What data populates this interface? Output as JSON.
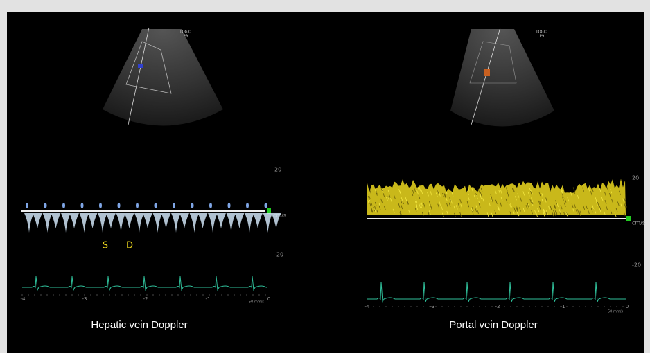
{
  "panels": [
    {
      "caption": "Hepatic vein Doppler",
      "logo": [
        "LOGIQ",
        "P9"
      ],
      "scale": [
        "20",
        "cm/s",
        "-20"
      ],
      "time": [
        "-4",
        "-3",
        "-2",
        "-1",
        "0"
      ],
      "speed": "50 mm/s",
      "markers": [
        "S",
        "D"
      ]
    },
    {
      "caption": "Portal vein Doppler",
      "logo": [
        "LOGIQ",
        "P9"
      ],
      "scale": [
        "20",
        "cm/s",
        "-20"
      ],
      "time": [
        "-4",
        "-3",
        "-2",
        "-1",
        "0"
      ],
      "speed": "50 mm/s"
    }
  ]
}
